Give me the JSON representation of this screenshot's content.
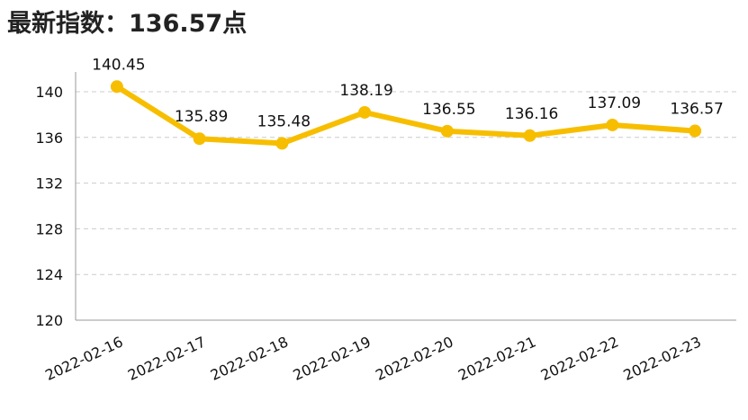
{
  "title": "最新指数：136.57点",
  "colors": {
    "line": "#F7BE00",
    "grid": "#CCCCCC",
    "axis": "#999999",
    "text": "#111111"
  },
  "chart_data": {
    "type": "line",
    "title": "最新指数：136.57点",
    "xlabel": "",
    "ylabel": "",
    "categories": [
      "2022-02-16",
      "2022-02-17",
      "2022-02-18",
      "2022-02-19",
      "2022-02-20",
      "2022-02-21",
      "2022-02-22",
      "2022-02-23"
    ],
    "series": [
      {
        "values": [
          140.45,
          135.89,
          135.48,
          138.19,
          136.55,
          136.16,
          137.09,
          136.57
        ]
      }
    ],
    "data_labels": [
      "140.45",
      "135.89",
      "135.48",
      "138.19",
      "136.55",
      "136.16",
      "137.09",
      "136.57"
    ],
    "yticks": [
      "120",
      "124",
      "128",
      "132",
      "136",
      "140"
    ],
    "ylim": [
      120,
      142
    ],
    "grid": true,
    "legend": "none",
    "markers": true
  }
}
